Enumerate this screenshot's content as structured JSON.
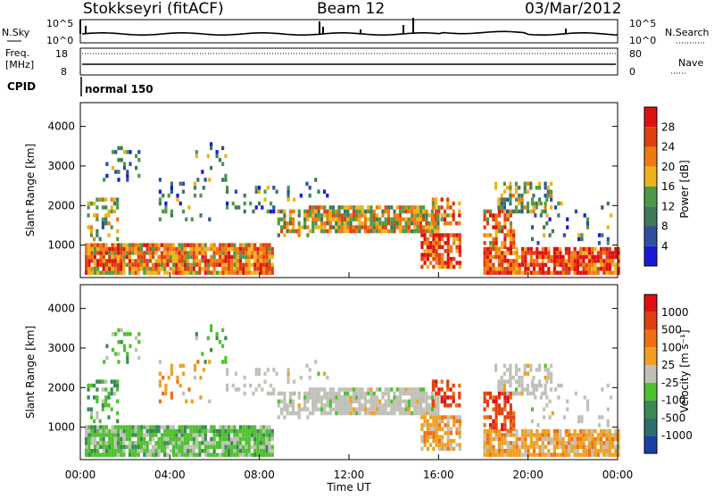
{
  "header": {
    "station": "Stokkseyri (fitACF)",
    "beam": "Beam 12",
    "date": "03/Mar/2012"
  },
  "panels": {
    "nsky": {
      "label": "N.Sky",
      "left_top": "10^5",
      "left_bottom": "10^0",
      "right_top": "10^5",
      "right_bottom": "10^0",
      "right_label": "N.Search"
    },
    "freq": {
      "label_line1": "Freq.",
      "label_line2": "[MHz]",
      "left_top": "18",
      "left_bottom": "8",
      "right_top": "80",
      "right_bottom": "0",
      "right_label": "Nave"
    },
    "cpid": {
      "label": "CPID",
      "program": "normal 150"
    }
  },
  "colors": {
    "power": [
      "#1a1ad6",
      "#2e4fa0",
      "#3f7a58",
      "#4c9a48",
      "#f0b21a",
      "#f07a10",
      "#e04010",
      "#e01010"
    ],
    "velocity": [
      "#1a3fa6",
      "#2c6e70",
      "#3a8a52",
      "#50c030",
      "#c0c0b8",
      "#f0a020",
      "#f07010",
      "#e04010",
      "#e01010"
    ]
  },
  "chart_data": [
    {
      "type": "heatmap",
      "panel": "power",
      "ylabel": "Slant Range [km]",
      "yticks": [
        1000,
        2000,
        3000,
        4000
      ],
      "ylim": [
        180,
        4600
      ],
      "colorbar_label": "Power [dB]",
      "colorbar_ticks": [
        "28",
        "24",
        "20",
        "16",
        "12",
        "8",
        "4"
      ],
      "colorbar_range": [
        0,
        30
      ],
      "note_regions": [
        {
          "t0": 0.2,
          "t1": 8.5,
          "r0": 300,
          "r1": 1000,
          "level": 18
        },
        {
          "t0": 9.0,
          "t1": 16.2,
          "r0": 1300,
          "r1": 1900,
          "level": 14
        },
        {
          "t0": 16.0,
          "t1": 17.0,
          "r0": 500,
          "r1": 1300,
          "level": 20
        },
        {
          "t0": 18.3,
          "t1": 24.0,
          "r0": 300,
          "r1": 800,
          "level": 20
        }
      ]
    },
    {
      "type": "heatmap",
      "panel": "velocity",
      "ylabel": "Slant Range [km]",
      "yticks": [
        1000,
        2000,
        3000,
        4000
      ],
      "ylim": [
        180,
        4600
      ],
      "xlabel": "Time UT",
      "xticks": [
        "00:00",
        "04:00",
        "08:00",
        "12:00",
        "16:00",
        "20:00",
        "00:00"
      ],
      "xlim": [
        0,
        24
      ],
      "colorbar_label": "Velocity [m s⁻¹]",
      "colorbar_ticks": [
        "1000",
        "500",
        "100",
        "25",
        "-25",
        "-100",
        "-500",
        "-1000"
      ]
    }
  ]
}
